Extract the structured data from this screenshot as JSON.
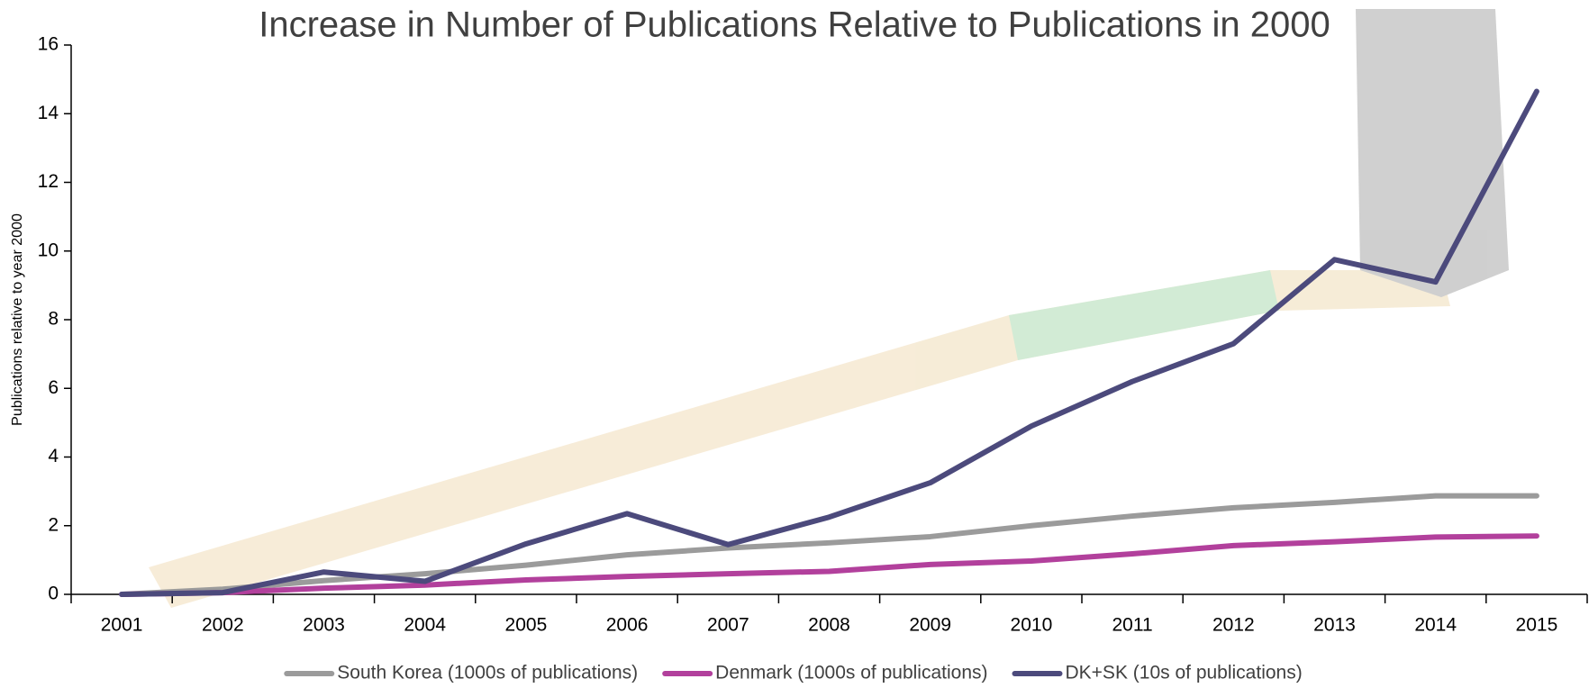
{
  "chart_data": {
    "type": "line",
    "title": "Increase in Number of Publications Relative to Publications in 2000",
    "y_label": "Publications relative to year 2000",
    "categories": [
      "2001",
      "2002",
      "2003",
      "2004",
      "2005",
      "2006",
      "2007",
      "2008",
      "2009",
      "2010",
      "2011",
      "2012",
      "2013",
      "2014",
      "2015"
    ],
    "series": [
      {
        "name": "South Korea (1000s of publications)",
        "color": "#9b9b9b",
        "values": [
          0,
          0.15,
          0.4,
          0.6,
          0.85,
          1.15,
          1.35,
          1.5,
          1.68,
          2.0,
          2.28,
          2.52,
          2.68,
          2.87,
          2.87
        ]
      },
      {
        "name": "Denmark (1000s of publications)",
        "color": "#b2409c",
        "values": [
          0,
          0.05,
          0.18,
          0.27,
          0.42,
          0.52,
          0.6,
          0.67,
          0.87,
          0.97,
          1.18,
          1.42,
          1.53,
          1.67,
          1.7
        ]
      },
      {
        "name": "DK+SK (10s of publications)",
        "color": "#4c4a7c",
        "values": [
          0,
          0.05,
          0.65,
          0.38,
          1.47,
          2.35,
          1.45,
          2.25,
          3.25,
          4.9,
          6.2,
          7.3,
          9.75,
          9.1,
          14.65
        ]
      }
    ],
    "ylim": [
      0,
      16
    ],
    "yticks": [
      0,
      2,
      4,
      6,
      8,
      10,
      12,
      14,
      16
    ],
    "grid": false
  }
}
